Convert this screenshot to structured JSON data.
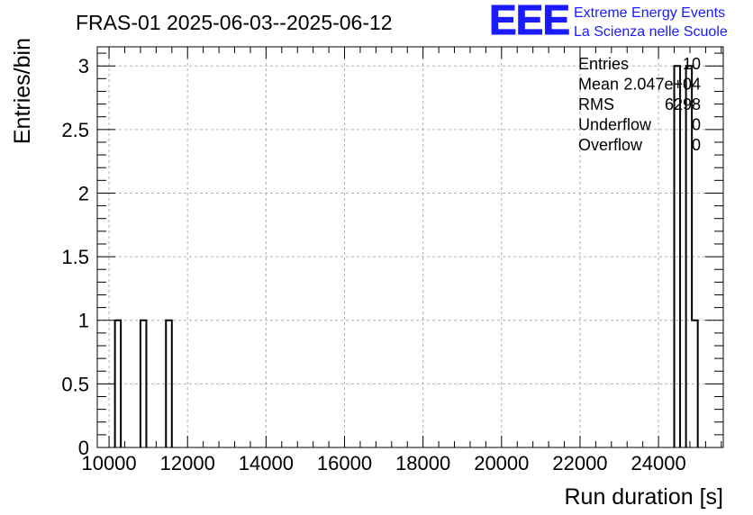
{
  "chart_data": {
    "type": "bar",
    "title": "FRAS-01 2025-06-03--2025-06-12",
    "xlabel": "Run duration [s]",
    "ylabel": "Entries/bin",
    "xlim": [
      9700,
      25650
    ],
    "ylim": [
      0,
      3.15
    ],
    "grid": true,
    "x_ticks": [
      10000,
      12000,
      14000,
      16000,
      18000,
      20000,
      22000,
      24000
    ],
    "x_tick_labels": [
      "10000",
      "12000",
      "14000",
      "16000",
      "18000",
      "20000",
      "22000",
      "24000"
    ],
    "y_ticks": [
      0,
      0.5,
      1,
      1.5,
      2,
      2.5,
      3
    ],
    "y_tick_labels": [
      "0",
      "0.5",
      "1",
      "1.5",
      "2",
      "2.5",
      "3"
    ],
    "bins": [
      {
        "x0": 10150,
        "x1": 10300,
        "count": 1
      },
      {
        "x0": 10800,
        "x1": 10950,
        "count": 1
      },
      {
        "x0": 11450,
        "x1": 11600,
        "count": 1
      },
      {
        "x0": 24400,
        "x1": 24550,
        "count": 3
      },
      {
        "x0": 24700,
        "x1": 24850,
        "count": 3
      },
      {
        "x0": 24850,
        "x1": 25000,
        "count": 1
      }
    ],
    "stats": {
      "labels": [
        "Entries",
        "Mean",
        "RMS",
        "Underflow",
        "Overflow"
      ],
      "values": [
        "10",
        "2.047e+04",
        "6298",
        "0",
        "0"
      ],
      "placement": "top-right"
    }
  },
  "logo": {
    "mark": "EEE",
    "line1": "Extreme Energy Events",
    "line2": "La Scienza nelle Scuole",
    "color": "#1a1aff"
  }
}
